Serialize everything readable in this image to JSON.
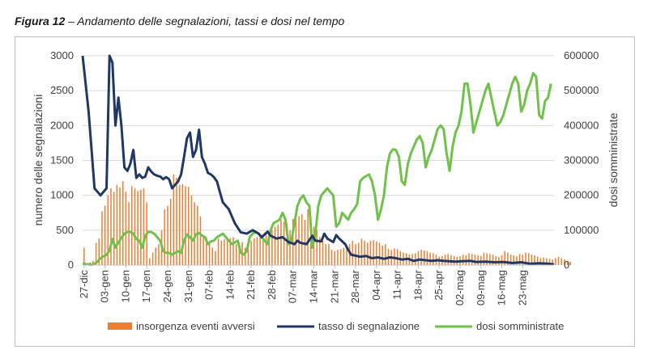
{
  "figure": {
    "title_bold": "Figura 12",
    "title_rest": " – Andamento delle segnalazioni, tassi e dosi nel tempo"
  },
  "chart_data": {
    "type": "bar+line",
    "ylabel_left": "numero delle segnalazioni",
    "ylabel_right": "dosi somministrate",
    "ylim_left": [
      0,
      3000
    ],
    "yticks_left": [
      "0",
      "500",
      "1000",
      "1500",
      "2000",
      "2500",
      "3000"
    ],
    "ylim_right": [
      0,
      600000
    ],
    "yticks_right": [
      "0",
      "100000",
      "200000",
      "300000",
      "400000",
      "500000",
      "600000"
    ],
    "x_tick_labels": [
      "27-dic",
      "03-gen",
      "10-gen",
      "17-gen",
      "24-gen",
      "31-gen",
      "07-feb",
      "14-feb",
      "21-feb",
      "28-feb",
      "07-mar",
      "14-mar",
      "21-mar",
      "28-mar",
      "04-apr",
      "11-apr",
      "18-apr",
      "25-apr",
      "02-mag",
      "09-mag",
      "16-mag",
      "23-mag"
    ],
    "grid": "horizontal",
    "legend_position": "bottom",
    "colors": {
      "bars": "#ed7d31",
      "tasso": "#1f3864",
      "dosi": "#70c14a"
    },
    "series": [
      {
        "name": "insorgenza eventi avversi",
        "kind": "bar",
        "axis": "left",
        "values": [
          250,
          20,
          40,
          60,
          320,
          380,
          770,
          850,
          1000,
          1100,
          1050,
          1150,
          1110,
          1200,
          1050,
          900,
          1130,
          1100,
          1060,
          1080,
          1100,
          900,
          100,
          180,
          250,
          300,
          500,
          800,
          850,
          950,
          1300,
          1250,
          1150,
          1160,
          1130,
          1120,
          1000,
          900,
          850,
          700,
          400,
          400,
          300,
          250,
          200,
          380,
          350,
          370,
          380,
          390,
          400,
          300,
          320,
          330,
          250,
          300,
          350,
          380,
          400,
          400,
          350,
          450,
          350,
          500,
          550,
          580,
          650,
          620,
          600,
          500,
          660,
          750,
          700,
          730,
          650,
          800,
          700,
          550,
          500,
          400,
          350,
          300,
          300,
          220,
          200,
          220,
          230,
          250,
          240,
          300,
          350,
          300,
          320,
          380,
          350,
          320,
          350,
          360,
          340,
          320,
          280,
          300,
          230,
          220,
          240,
          230,
          200,
          180,
          170,
          150,
          160,
          170,
          200,
          220,
          210,
          200,
          180,
          170,
          150,
          120,
          130,
          150,
          160,
          140,
          130,
          120,
          130,
          150,
          140,
          170,
          160,
          150,
          140,
          130,
          180,
          170,
          160,
          150,
          130,
          120,
          140,
          200,
          180,
          150,
          140,
          130,
          160,
          150,
          180,
          170,
          150,
          140,
          120,
          100,
          110,
          100,
          90,
          80,
          100,
          120,
          100,
          80,
          60,
          50
        ]
      },
      {
        "name": "tasso di segnalazione",
        "kind": "line",
        "axis": "left",
        "points": [
          [
            0,
            3000
          ],
          [
            2,
            2200
          ],
          [
            4,
            1100
          ],
          [
            6,
            1000
          ],
          [
            8,
            1100
          ],
          [
            9,
            3000
          ],
          [
            10,
            2900
          ],
          [
            11,
            2000
          ],
          [
            12,
            2400
          ],
          [
            13,
            2000
          ],
          [
            14,
            1400
          ],
          [
            15,
            1350
          ],
          [
            16,
            1450
          ],
          [
            17,
            1650
          ],
          [
            18,
            1250
          ],
          [
            19,
            1300
          ],
          [
            20,
            1250
          ],
          [
            21,
            1270
          ],
          [
            22,
            1400
          ],
          [
            23,
            1340
          ],
          [
            24,
            1300
          ],
          [
            25,
            1280
          ],
          [
            26,
            1270
          ],
          [
            27,
            1230
          ],
          [
            28,
            1260
          ],
          [
            29,
            1230
          ],
          [
            30,
            1100
          ],
          [
            31,
            1150
          ],
          [
            32,
            1200
          ],
          [
            33,
            1300
          ],
          [
            34,
            1550
          ],
          [
            35,
            1820
          ],
          [
            36,
            1900
          ],
          [
            37,
            1550
          ],
          [
            38,
            1650
          ],
          [
            39,
            1940
          ],
          [
            40,
            1550
          ],
          [
            41,
            1450
          ],
          [
            42,
            1320
          ],
          [
            43,
            1300
          ],
          [
            44,
            1260
          ],
          [
            45,
            1200
          ],
          [
            46,
            1050
          ],
          [
            47,
            900
          ],
          [
            48,
            850
          ],
          [
            49,
            800
          ],
          [
            50,
            700
          ],
          [
            51,
            600
          ],
          [
            53,
            470
          ],
          [
            55,
            450
          ],
          [
            57,
            500
          ],
          [
            59,
            450
          ],
          [
            60,
            400
          ],
          [
            62,
            480
          ],
          [
            63,
            420
          ],
          [
            65,
            380
          ],
          [
            67,
            400
          ],
          [
            69,
            330
          ],
          [
            71,
            300
          ],
          [
            72,
            350
          ],
          [
            73,
            320
          ],
          [
            75,
            300
          ],
          [
            77,
            420
          ],
          [
            78,
            350
          ],
          [
            80,
            340
          ],
          [
            81,
            450
          ],
          [
            82,
            380
          ],
          [
            84,
            330
          ],
          [
            85,
            430
          ],
          [
            86,
            380
          ],
          [
            88,
            300
          ],
          [
            89,
            220
          ],
          [
            90,
            150
          ],
          [
            93,
            120
          ],
          [
            95,
            130
          ],
          [
            97,
            100
          ],
          [
            99,
            110
          ],
          [
            101,
            90
          ],
          [
            103,
            110
          ],
          [
            105,
            100
          ],
          [
            107,
            80
          ],
          [
            109,
            90
          ],
          [
            111,
            60
          ],
          [
            113,
            80
          ],
          [
            115,
            70
          ],
          [
            117,
            60
          ],
          [
            119,
            70
          ],
          [
            121,
            60
          ],
          [
            123,
            55
          ],
          [
            125,
            50
          ],
          [
            127,
            55
          ],
          [
            130,
            60
          ],
          [
            132,
            45
          ],
          [
            135,
            50
          ],
          [
            138,
            40
          ],
          [
            141,
            45
          ],
          [
            144,
            30
          ],
          [
            147,
            40
          ],
          [
            150,
            20
          ],
          [
            153,
            25
          ],
          [
            156,
            20
          ],
          [
            158,
            10
          ]
        ]
      },
      {
        "name": "dosi somministrate",
        "kind": "line",
        "axis": "right",
        "points": [
          [
            0,
            5000
          ],
          [
            1,
            3000
          ],
          [
            3,
            1000
          ],
          [
            4,
            4000
          ],
          [
            5,
            10000
          ],
          [
            6,
            20000
          ],
          [
            7,
            25000
          ],
          [
            8,
            30000
          ],
          [
            9,
            42000
          ],
          [
            10,
            75000
          ],
          [
            11,
            50000
          ],
          [
            12,
            65000
          ],
          [
            13,
            78000
          ],
          [
            14,
            90000
          ],
          [
            15,
            95000
          ],
          [
            16,
            95000
          ],
          [
            17,
            90000
          ],
          [
            18,
            75000
          ],
          [
            19,
            70000
          ],
          [
            20,
            50000
          ],
          [
            21,
            85000
          ],
          [
            22,
            95000
          ],
          [
            23,
            95000
          ],
          [
            24,
            90000
          ],
          [
            25,
            80000
          ],
          [
            26,
            70000
          ],
          [
            27,
            40000
          ],
          [
            28,
            35000
          ],
          [
            29,
            35000
          ],
          [
            30,
            30000
          ],
          [
            31,
            35000
          ],
          [
            32,
            40000
          ],
          [
            33,
            35000
          ],
          [
            34,
            70000
          ],
          [
            35,
            88000
          ],
          [
            36,
            80000
          ],
          [
            37,
            70000
          ],
          [
            38,
            88000
          ],
          [
            39,
            92000
          ],
          [
            40,
            85000
          ],
          [
            41,
            80000
          ],
          [
            42,
            60000
          ],
          [
            43,
            68000
          ],
          [
            44,
            70000
          ],
          [
            45,
            80000
          ],
          [
            46,
            85000
          ],
          [
            47,
            90000
          ],
          [
            48,
            80000
          ],
          [
            49,
            70000
          ],
          [
            50,
            60000
          ],
          [
            51,
            65000
          ],
          [
            52,
            70000
          ],
          [
            53,
            35000
          ],
          [
            54,
            30000
          ],
          [
            55,
            40000
          ],
          [
            56,
            80000
          ],
          [
            57,
            90000
          ],
          [
            58,
            95000
          ],
          [
            59,
            90000
          ],
          [
            60,
            80000
          ],
          [
            61,
            70000
          ],
          [
            62,
            60000
          ],
          [
            63,
            100000
          ],
          [
            64,
            120000
          ],
          [
            65,
            125000
          ],
          [
            66,
            130000
          ],
          [
            67,
            150000
          ],
          [
            68,
            130000
          ],
          [
            69,
            60000
          ],
          [
            70,
            70000
          ],
          [
            71,
            120000
          ],
          [
            72,
            170000
          ],
          [
            73,
            190000
          ],
          [
            74,
            200000
          ],
          [
            75,
            180000
          ],
          [
            76,
            170000
          ],
          [
            77,
            50000
          ],
          [
            78,
            90000
          ],
          [
            79,
            170000
          ],
          [
            80,
            200000
          ],
          [
            81,
            210000
          ],
          [
            82,
            220000
          ],
          [
            83,
            210000
          ],
          [
            84,
            200000
          ],
          [
            85,
            110000
          ],
          [
            86,
            120000
          ],
          [
            87,
            150000
          ],
          [
            88,
            140000
          ],
          [
            89,
            130000
          ],
          [
            90,
            150000
          ],
          [
            91,
            160000
          ],
          [
            92,
            175000
          ],
          [
            93,
            240000
          ],
          [
            94,
            250000
          ],
          [
            95,
            255000
          ],
          [
            96,
            260000
          ],
          [
            97,
            240000
          ],
          [
            98,
            200000
          ],
          [
            99,
            130000
          ],
          [
            100,
            160000
          ],
          [
            101,
            200000
          ],
          [
            102,
            280000
          ],
          [
            103,
            320000
          ],
          [
            104,
            332000
          ],
          [
            105,
            330000
          ],
          [
            106,
            310000
          ],
          [
            107,
            240000
          ],
          [
            108,
            230000
          ],
          [
            109,
            290000
          ],
          [
            110,
            320000
          ],
          [
            111,
            340000
          ],
          [
            112,
            360000
          ],
          [
            113,
            370000
          ],
          [
            114,
            350000
          ],
          [
            115,
            280000
          ],
          [
            116,
            310000
          ],
          [
            117,
            330000
          ],
          [
            118,
            360000
          ],
          [
            119,
            390000
          ],
          [
            120,
            400000
          ],
          [
            121,
            390000
          ],
          [
            122,
            320000
          ],
          [
            123,
            270000
          ],
          [
            124,
            340000
          ],
          [
            125,
            380000
          ],
          [
            126,
            400000
          ],
          [
            127,
            440000
          ],
          [
            128,
            520000
          ],
          [
            129,
            520000
          ],
          [
            130,
            460000
          ],
          [
            131,
            380000
          ],
          [
            132,
            410000
          ],
          [
            133,
            440000
          ],
          [
            134,
            470000
          ],
          [
            135,
            500000
          ],
          [
            136,
            520000
          ],
          [
            137,
            480000
          ],
          [
            138,
            440000
          ],
          [
            139,
            400000
          ],
          [
            140,
            410000
          ],
          [
            141,
            430000
          ],
          [
            142,
            460000
          ],
          [
            143,
            490000
          ],
          [
            144,
            520000
          ],
          [
            145,
            540000
          ],
          [
            146,
            520000
          ],
          [
            147,
            440000
          ],
          [
            148,
            460000
          ],
          [
            149,
            500000
          ],
          [
            150,
            520000
          ],
          [
            151,
            550000
          ],
          [
            152,
            540000
          ],
          [
            153,
            430000
          ],
          [
            154,
            420000
          ],
          [
            155,
            470000
          ],
          [
            156,
            480000
          ],
          [
            157,
            520000
          ]
        ]
      }
    ]
  }
}
